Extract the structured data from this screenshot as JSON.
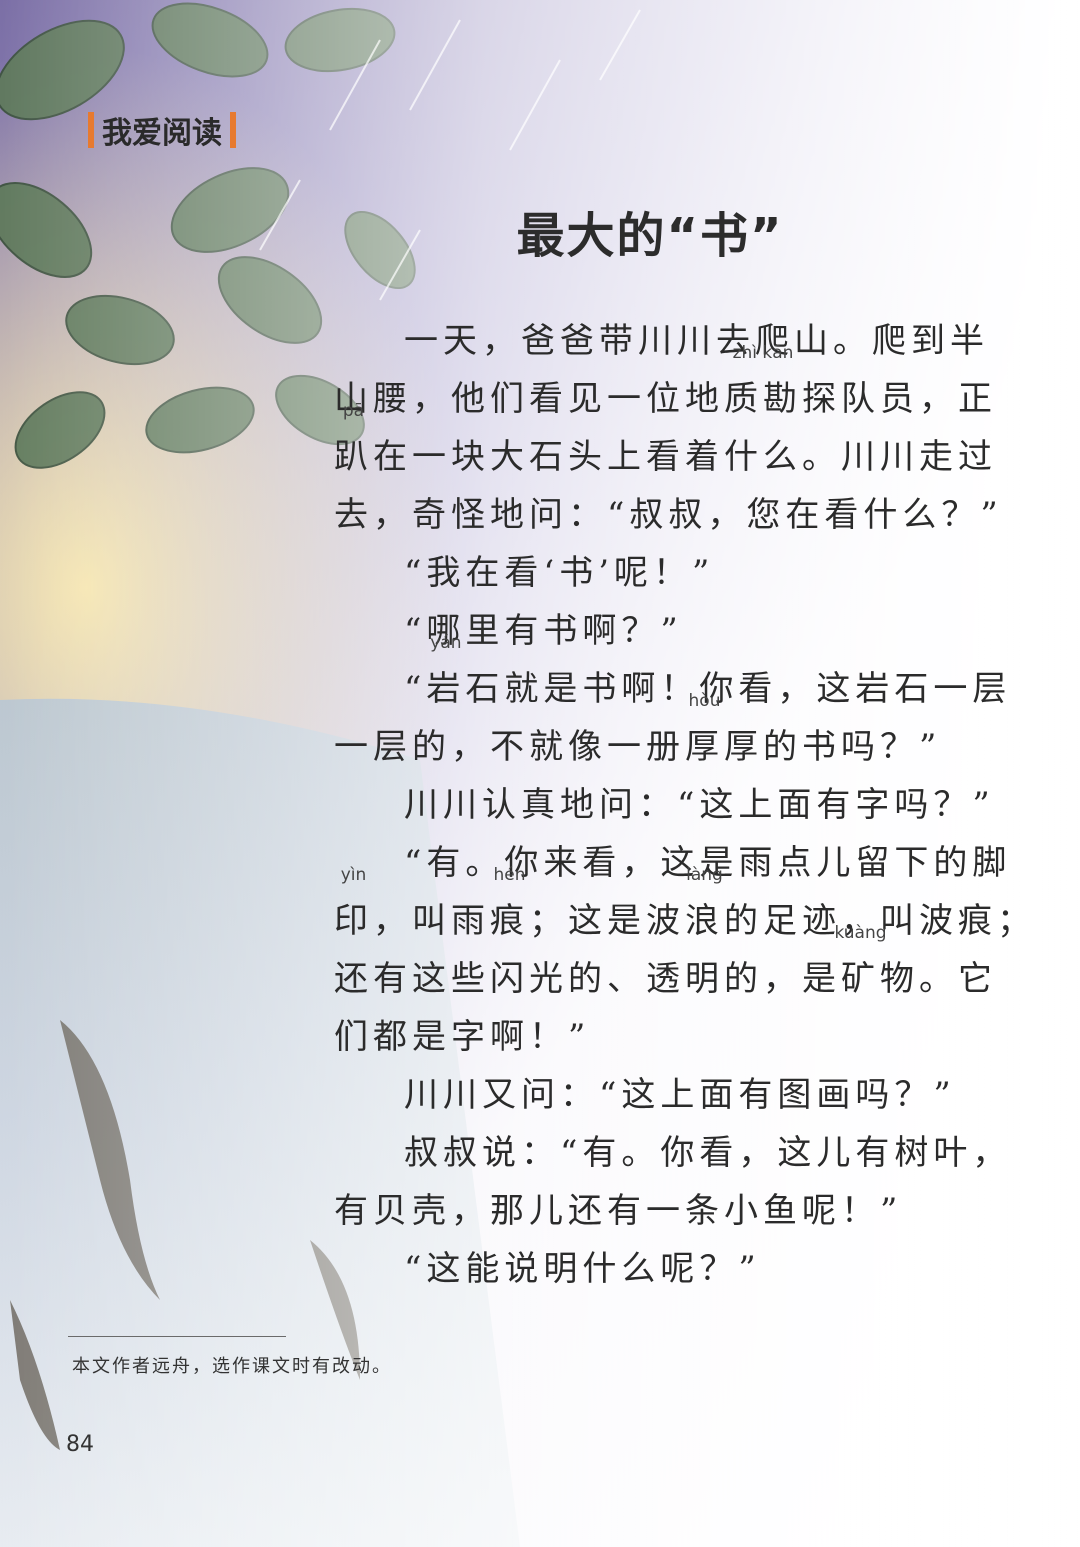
{
  "section_label": "我爱阅读",
  "title": "最大的“书”",
  "paragraphs": {
    "p1": {
      "l1": "一天，爸爸带川川去爬山。爬到半",
      "l2a": "山腰，他们看见一位地",
      "l2r1": "质勘",
      "l2r1_py": "zhì kān",
      "l2b": "探队员，正",
      "l3r1": "趴",
      "l3r1_py": "pā",
      "l3b": "在一块大石头上看着什么。川川走过",
      "l4": "去，奇怪地问：“叔叔，您在看什么？”"
    },
    "p2": "“我在看‘书’呢！”",
    "p3": "“哪里有书啊？”",
    "p4": {
      "l1a": "“",
      "l1r": "岩",
      "l1r_py": "yán",
      "l1b": "石就是书啊！你看，这岩石一层",
      "l2a": "一层的，不就像一册",
      "l2r": "厚",
      "l2r_py": "hòu",
      "l2b": "厚的书吗？”"
    },
    "p5": "川川认真地问：“这上面有字吗？”",
    "p6": {
      "l1": "“有。你来看，这是雨点儿留下的脚",
      "l2r1": "印",
      "l2r1_py": "yìn",
      "l2a": "，叫雨",
      "l2r2": "痕",
      "l2r2_py": "hén",
      "l2b": "；这是波",
      "l2r3": "浪",
      "l2r3_py": "làng",
      "l2c": "的足迹，叫波痕；",
      "l3a": "还有这些闪光的、透明的，是",
      "l3r": "矿",
      "l3r_py": "kuàng",
      "l3b": "物。它",
      "l4": "们都是字啊！”"
    },
    "p7": "川川又问：“这上面有图画吗？”",
    "p8": {
      "l1": "叔叔说：“有。你看，这儿有树叶，",
      "l2": "有贝壳，那儿还有一条小鱼呢！”"
    },
    "p9": "“这能说明什么呢？”"
  },
  "footnote": "本文作者远舟，选作课文时有改动。",
  "page_number": "84"
}
